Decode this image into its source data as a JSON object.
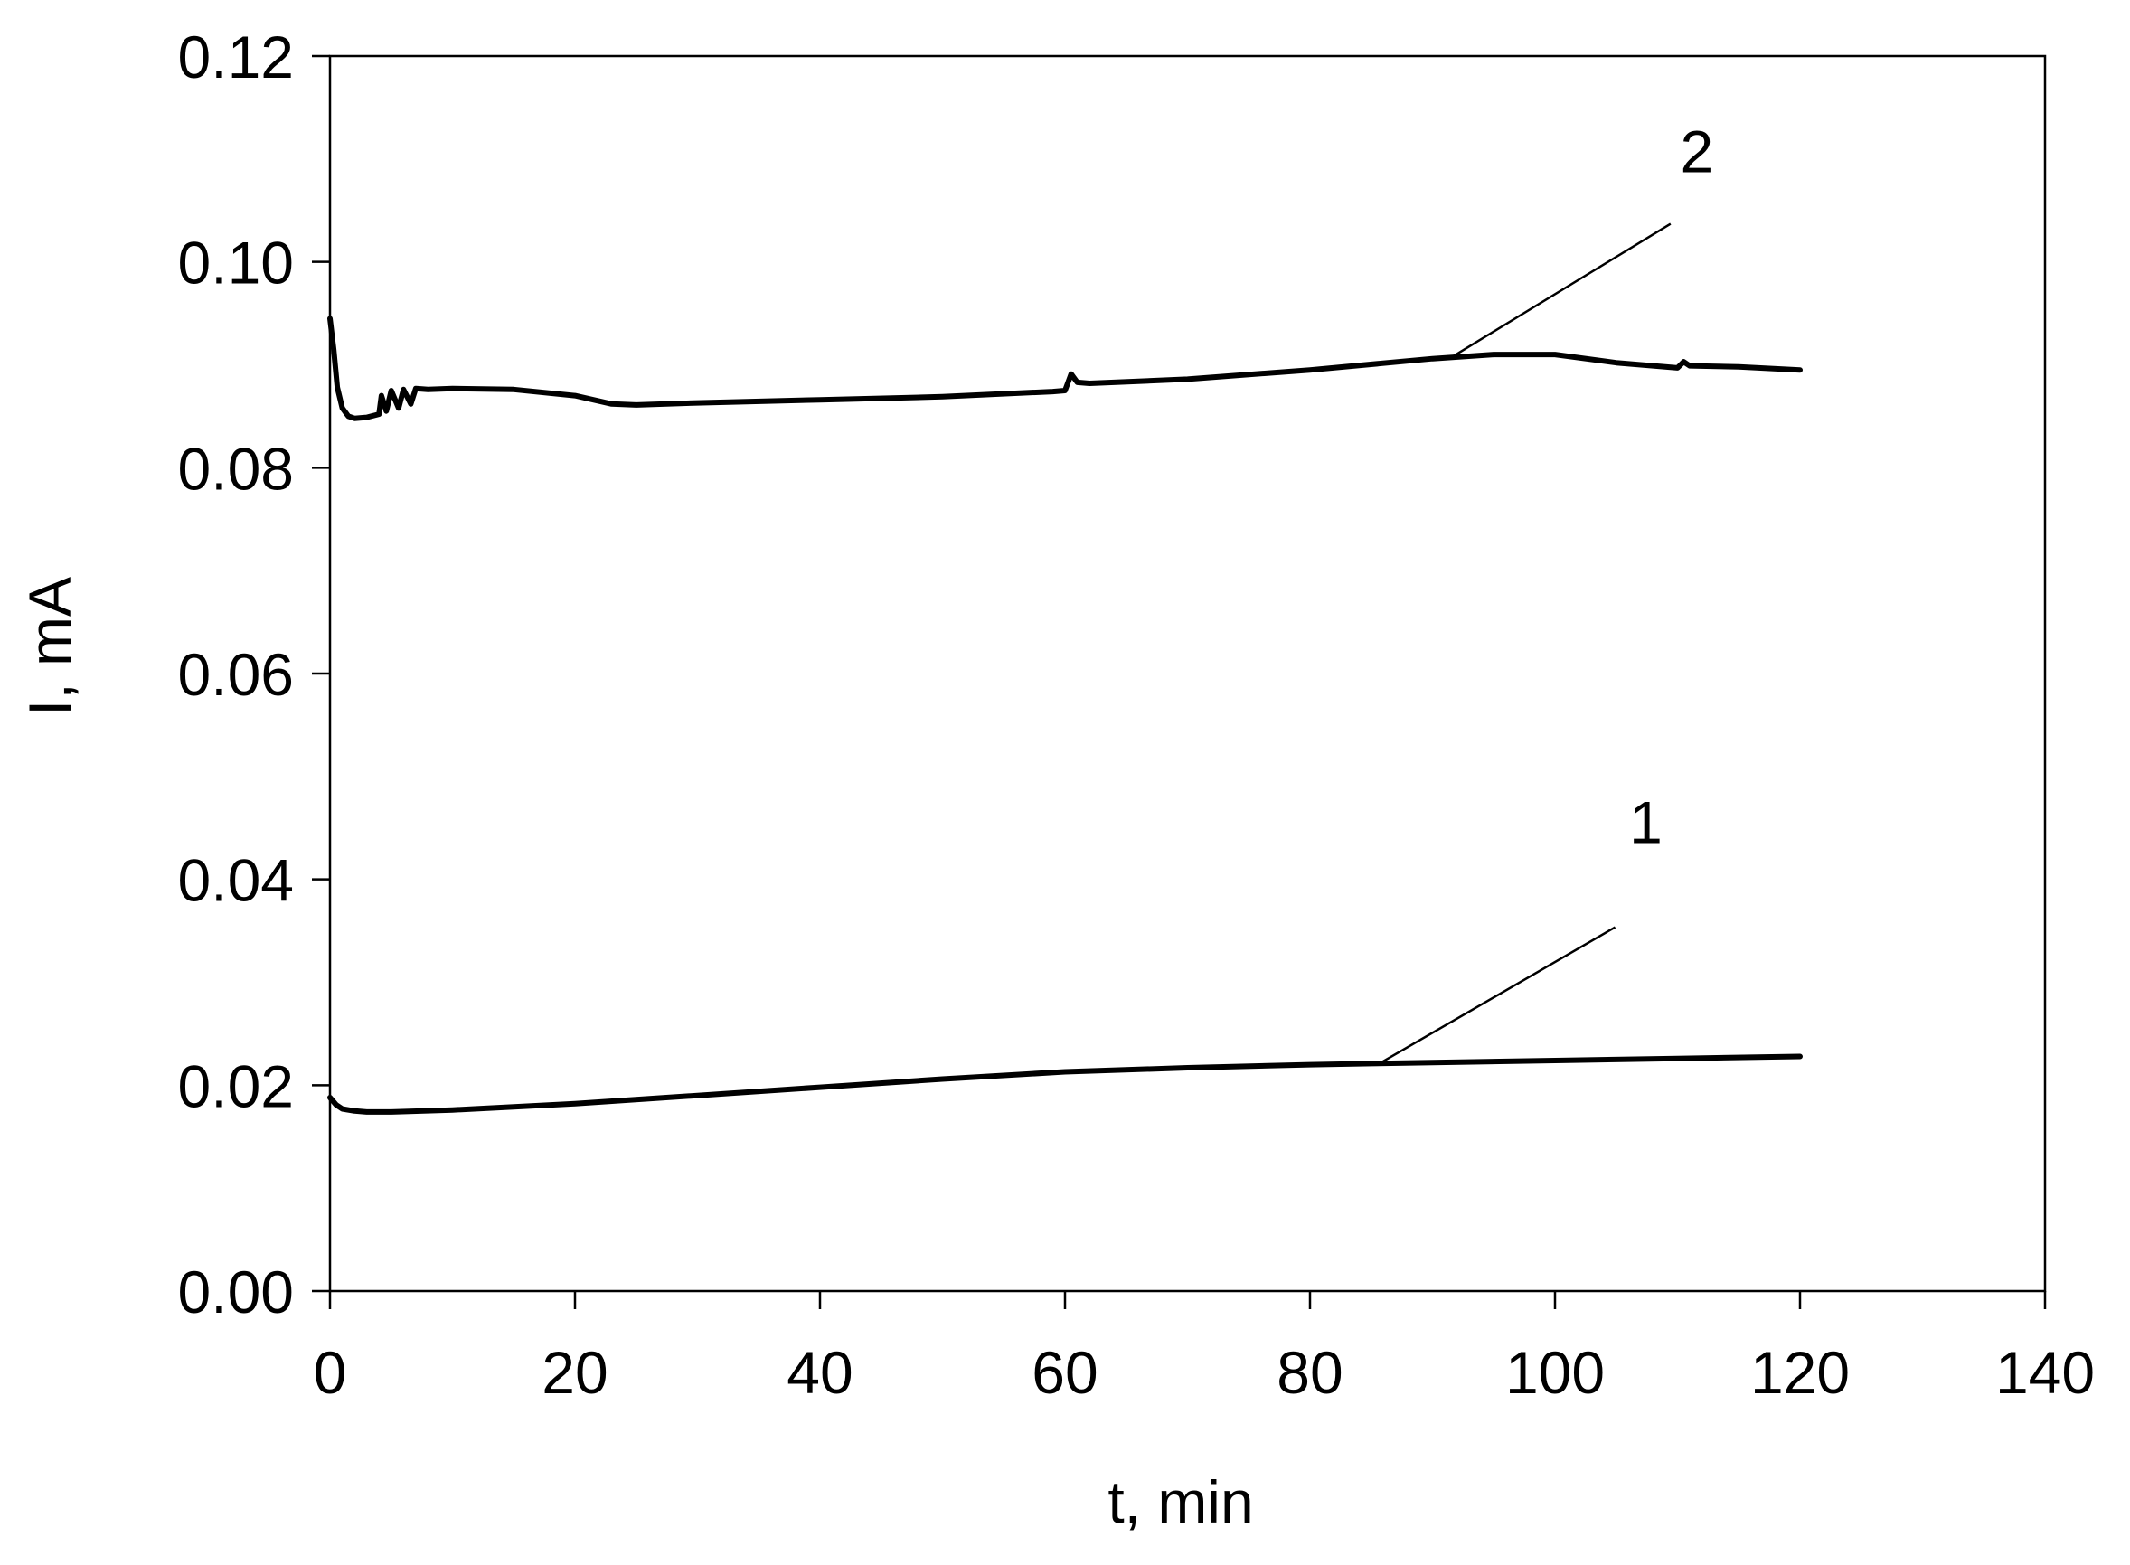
{
  "chart_data": {
    "type": "line",
    "xlabel": "t, min",
    "ylabel": "I, mA",
    "xlim": [
      0,
      140
    ],
    "ylim": [
      0,
      0.12
    ],
    "x_ticks": [
      0,
      20,
      40,
      60,
      80,
      100,
      120,
      140
    ],
    "x_tick_labels": [
      "0",
      "20",
      "40",
      "60",
      "80",
      "100",
      "120",
      "140"
    ],
    "y_ticks": [
      0,
      0.02,
      0.04,
      0.06,
      0.08,
      0.1,
      0.12
    ],
    "y_tick_labels": [
      "0.00",
      "0.02",
      "0.04",
      "0.06",
      "0.08",
      "0.10",
      "0.12"
    ],
    "grid": false,
    "legend": "none",
    "line_color": "#000000",
    "series": [
      {
        "label": "1",
        "x": [
          0,
          0.5,
          1,
          2,
          3,
          5,
          10,
          20,
          30,
          40,
          50,
          60,
          70,
          80,
          85,
          90,
          100,
          110,
          120
        ],
        "y": [
          0.0188,
          0.0181,
          0.0177,
          0.0175,
          0.0174,
          0.0174,
          0.0176,
          0.0182,
          0.019,
          0.0198,
          0.0206,
          0.0213,
          0.0217,
          0.022,
          0.0221,
          0.0222,
          0.0224,
          0.0226,
          0.0228
        ]
      },
      {
        "label": "2",
        "x": [
          0,
          0.3,
          0.6,
          1,
          1.5,
          2,
          3,
          4,
          4.2,
          4.6,
          5,
          5.6,
          6,
          6.6,
          7,
          8,
          10,
          15,
          20,
          23,
          25,
          30,
          40,
          50,
          59,
          60,
          60.5,
          61,
          62,
          70,
          80,
          90,
          95,
          100,
          105,
          110,
          110.5,
          111,
          115,
          120
        ],
        "y": [
          0.0945,
          0.0915,
          0.0878,
          0.0858,
          0.085,
          0.0848,
          0.0849,
          0.0852,
          0.087,
          0.0855,
          0.0875,
          0.0858,
          0.0876,
          0.0862,
          0.0877,
          0.0876,
          0.0877,
          0.0876,
          0.087,
          0.0862,
          0.0861,
          0.0863,
          0.0866,
          0.0869,
          0.0874,
          0.0875,
          0.0891,
          0.0883,
          0.0882,
          0.0886,
          0.0895,
          0.0906,
          0.091,
          0.091,
          0.0902,
          0.0897,
          0.0903,
          0.0899,
          0.0898,
          0.0895
        ]
      }
    ],
    "annotations": [
      {
        "text": "1",
        "series": "1",
        "x": 85.5,
        "y": 0.022
      },
      {
        "text": "2",
        "series": "2",
        "x": 91.5,
        "y": 0.0907
      }
    ]
  }
}
